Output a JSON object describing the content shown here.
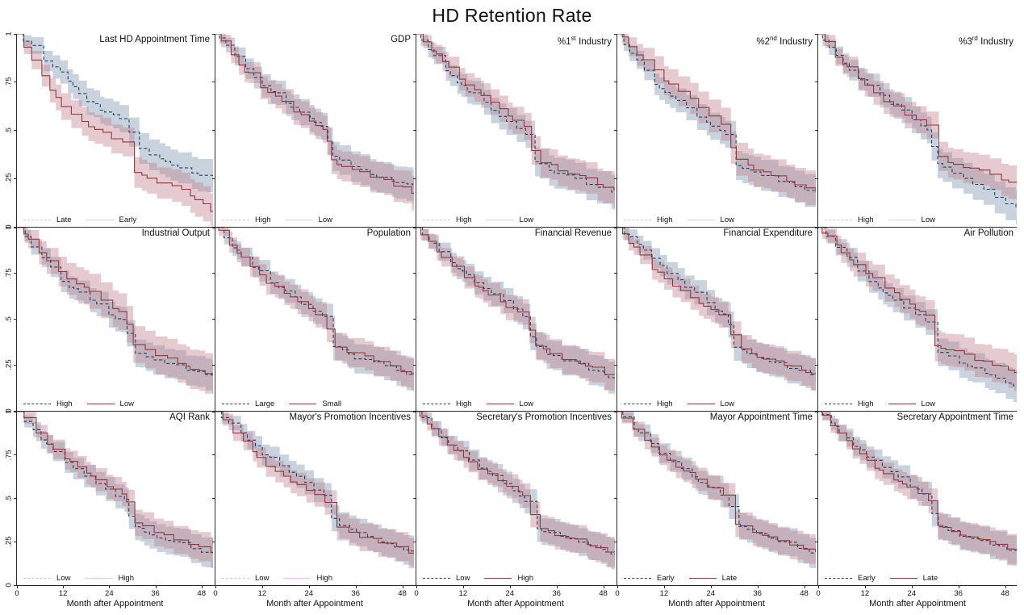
{
  "chart_data": {
    "type": "line",
    "subtype": "kaplan-meier-survival-grid",
    "title": "HD Retention Rate",
    "x_label": "Month after Appointment",
    "x_ticks": [
      0,
      12,
      24,
      36,
      48
    ],
    "y_ticks": [
      "0",
      ".25",
      ".5",
      ".75",
      "1"
    ],
    "x_range": [
      0,
      51
    ],
    "y_range": [
      0,
      1
    ],
    "grid": "off",
    "legend_position": "bottom-left-inside",
    "months_key": [
      0,
      3,
      6,
      9,
      12,
      18,
      24,
      28,
      30,
      36,
      42,
      48,
      51
    ],
    "colors": {
      "blue_line": "#24425f",
      "blue_band": "#7b97b1",
      "red_line": "#8e3a3f",
      "red_band": "#c2848c",
      "legend_light_blue": "#b9cbdb",
      "legend_light_red": "#e6cbd0",
      "axis": "#2b2b2b"
    },
    "panels": [
      {
        "title": "Last HD Appointment Time",
        "legend": [
          "Late",
          "Early"
        ],
        "legend_shade": "light",
        "blue": [
          1,
          0.95,
          0.88,
          0.83,
          0.78,
          0.66,
          0.58,
          0.56,
          0.44,
          0.35,
          0.31,
          0.27,
          0.25
        ],
        "red": [
          1,
          0.9,
          0.8,
          0.7,
          0.62,
          0.52,
          0.47,
          0.44,
          0.28,
          0.24,
          0.2,
          0.12,
          0.07
        ],
        "ciB": [
          0.02,
          0.04,
          0.05,
          0.06,
          0.06,
          0.07,
          0.07,
          0.07,
          0.08,
          0.08,
          0.08,
          0.085,
          0.09
        ],
        "ciR": [
          0.02,
          0.045,
          0.055,
          0.065,
          0.07,
          0.075,
          0.075,
          0.075,
          0.08,
          0.08,
          0.085,
          0.09,
          0.095
        ]
      },
      {
        "title": "GDP",
        "legend": [
          "High",
          "Low"
        ],
        "legend_shade": "light",
        "blue": [
          1,
          0.93,
          0.86,
          0.8,
          0.74,
          0.65,
          0.56,
          0.51,
          0.36,
          0.3,
          0.26,
          0.22,
          0.2
        ],
        "red": [
          1,
          0.91,
          0.84,
          0.78,
          0.72,
          0.63,
          0.55,
          0.5,
          0.34,
          0.29,
          0.25,
          0.2,
          0.18
        ],
        "ciB": [
          0.025,
          0.04,
          0.05,
          0.055,
          0.06,
          0.065,
          0.07,
          0.07,
          0.075,
          0.08,
          0.08,
          0.085,
          0.09
        ],
        "ciR": [
          0.025,
          0.04,
          0.05,
          0.055,
          0.06,
          0.065,
          0.07,
          0.07,
          0.075,
          0.08,
          0.08,
          0.085,
          0.09
        ]
      },
      {
        "title": "%1st Industry",
        "title_sup": "st",
        "title_pre": "%1",
        "title_post": " Industry",
        "legend": [
          "High",
          "Low"
        ],
        "legend_shade": "light",
        "blue": [
          1,
          0.92,
          0.85,
          0.78,
          0.72,
          0.63,
          0.54,
          0.49,
          0.34,
          0.28,
          0.24,
          0.2,
          0.18
        ],
        "red": [
          1,
          0.94,
          0.87,
          0.81,
          0.75,
          0.66,
          0.57,
          0.52,
          0.36,
          0.3,
          0.26,
          0.21,
          0.19
        ],
        "ciB": [
          0.025,
          0.04,
          0.05,
          0.055,
          0.06,
          0.065,
          0.07,
          0.07,
          0.075,
          0.08,
          0.08,
          0.085,
          0.09
        ],
        "ciR": [
          0.025,
          0.04,
          0.05,
          0.055,
          0.06,
          0.065,
          0.07,
          0.07,
          0.075,
          0.08,
          0.08,
          0.085,
          0.09
        ]
      },
      {
        "title": "%2nd Industry",
        "title_sup": "nd",
        "title_pre": "%2",
        "title_post": " Industry",
        "legend": [
          "High",
          "Low"
        ],
        "legend_shade": "light",
        "blue": [
          1,
          0.91,
          0.83,
          0.76,
          0.7,
          0.61,
          0.53,
          0.48,
          0.33,
          0.28,
          0.24,
          0.19,
          0.17
        ],
        "red": [
          1,
          0.94,
          0.88,
          0.82,
          0.76,
          0.67,
          0.57,
          0.51,
          0.35,
          0.29,
          0.25,
          0.2,
          0.18
        ],
        "ciB": [
          0.025,
          0.04,
          0.05,
          0.055,
          0.06,
          0.065,
          0.07,
          0.07,
          0.075,
          0.08,
          0.08,
          0.085,
          0.09
        ],
        "ciR": [
          0.025,
          0.05,
          0.06,
          0.07,
          0.075,
          0.08,
          0.085,
          0.085,
          0.085,
          0.085,
          0.085,
          0.09,
          0.09
        ]
      },
      {
        "title": "%3rd Industry",
        "title_sup": "rd",
        "title_pre": "%3",
        "title_post": " Industry",
        "legend": [
          "High",
          "Low"
        ],
        "legend_shade": "light",
        "blue": [
          1,
          0.93,
          0.86,
          0.8,
          0.74,
          0.65,
          0.56,
          0.51,
          0.34,
          0.26,
          0.2,
          0.13,
          0.1
        ],
        "red": [
          1,
          0.92,
          0.85,
          0.79,
          0.73,
          0.64,
          0.56,
          0.52,
          0.37,
          0.32,
          0.28,
          0.24,
          0.22
        ],
        "ciB": [
          0.025,
          0.04,
          0.05,
          0.055,
          0.06,
          0.065,
          0.07,
          0.07,
          0.075,
          0.08,
          0.08,
          0.085,
          0.09
        ],
        "ciR": [
          0.025,
          0.04,
          0.05,
          0.055,
          0.06,
          0.065,
          0.07,
          0.07,
          0.075,
          0.08,
          0.08,
          0.085,
          0.09
        ]
      },
      {
        "title": "Industrial Output",
        "legend": [
          "High",
          "Low"
        ],
        "legend_shade": "dark",
        "blue": [
          1,
          0.92,
          0.84,
          0.77,
          0.7,
          0.61,
          0.53,
          0.48,
          0.33,
          0.28,
          0.24,
          0.2,
          0.18
        ],
        "red": [
          1,
          0.93,
          0.86,
          0.8,
          0.74,
          0.66,
          0.57,
          0.52,
          0.36,
          0.3,
          0.26,
          0.21,
          0.19
        ],
        "ciB": [
          0.025,
          0.04,
          0.05,
          0.055,
          0.06,
          0.065,
          0.07,
          0.07,
          0.075,
          0.08,
          0.08,
          0.085,
          0.09
        ],
        "ciR": [
          0.025,
          0.05,
          0.065,
          0.075,
          0.085,
          0.095,
          0.1,
          0.1,
          0.1,
          0.105,
          0.105,
          0.11,
          0.11
        ]
      },
      {
        "title": "Population",
        "legend": [
          "Large",
          "Small"
        ],
        "legend_shade": "dark",
        "blue": [
          1,
          0.93,
          0.86,
          0.8,
          0.74,
          0.65,
          0.56,
          0.51,
          0.35,
          0.29,
          0.25,
          0.21,
          0.19
        ],
        "red": [
          1,
          0.92,
          0.85,
          0.78,
          0.72,
          0.63,
          0.55,
          0.5,
          0.36,
          0.31,
          0.27,
          0.22,
          0.2
        ],
        "ciB": [
          0.025,
          0.04,
          0.05,
          0.055,
          0.06,
          0.065,
          0.07,
          0.07,
          0.075,
          0.08,
          0.08,
          0.085,
          0.09
        ],
        "ciR": [
          0.025,
          0.04,
          0.05,
          0.055,
          0.06,
          0.065,
          0.07,
          0.07,
          0.075,
          0.08,
          0.08,
          0.085,
          0.09
        ]
      },
      {
        "title": "Financial Revenue",
        "legend": [
          "High",
          "Low"
        ],
        "legend_shade": "dark",
        "blue": [
          1,
          0.94,
          0.87,
          0.81,
          0.75,
          0.66,
          0.57,
          0.51,
          0.35,
          0.29,
          0.25,
          0.2,
          0.18
        ],
        "red": [
          1,
          0.92,
          0.85,
          0.79,
          0.73,
          0.64,
          0.56,
          0.51,
          0.36,
          0.3,
          0.26,
          0.21,
          0.19
        ],
        "ciB": [
          0.025,
          0.04,
          0.05,
          0.055,
          0.06,
          0.065,
          0.07,
          0.07,
          0.075,
          0.08,
          0.08,
          0.085,
          0.09
        ],
        "ciR": [
          0.025,
          0.04,
          0.05,
          0.055,
          0.06,
          0.065,
          0.07,
          0.07,
          0.075,
          0.08,
          0.08,
          0.085,
          0.09
        ]
      },
      {
        "title": "Financial Expenditure",
        "legend": [
          "High",
          "Low"
        ],
        "legend_shade": "dark",
        "blue": [
          1,
          0.95,
          0.89,
          0.83,
          0.77,
          0.67,
          0.57,
          0.51,
          0.35,
          0.29,
          0.25,
          0.2,
          0.18
        ],
        "red": [
          1,
          0.92,
          0.85,
          0.78,
          0.72,
          0.63,
          0.55,
          0.5,
          0.35,
          0.3,
          0.26,
          0.21,
          0.19
        ],
        "ciB": [
          0.025,
          0.04,
          0.05,
          0.055,
          0.06,
          0.065,
          0.07,
          0.07,
          0.075,
          0.08,
          0.08,
          0.085,
          0.09
        ],
        "ciR": [
          0.025,
          0.04,
          0.05,
          0.055,
          0.06,
          0.065,
          0.07,
          0.07,
          0.075,
          0.08,
          0.08,
          0.085,
          0.09
        ]
      },
      {
        "title": "Air Pollution",
        "legend": [
          "High",
          "Low"
        ],
        "legend_shade": "dark",
        "blue": [
          1,
          0.93,
          0.86,
          0.79,
          0.72,
          0.62,
          0.53,
          0.48,
          0.33,
          0.27,
          0.22,
          0.16,
          0.13
        ],
        "red": [
          1,
          0.94,
          0.87,
          0.81,
          0.75,
          0.66,
          0.57,
          0.52,
          0.36,
          0.31,
          0.27,
          0.23,
          0.21
        ],
        "ciB": [
          0.025,
          0.04,
          0.05,
          0.055,
          0.06,
          0.065,
          0.07,
          0.07,
          0.075,
          0.08,
          0.08,
          0.085,
          0.09
        ],
        "ciR": [
          0.025,
          0.045,
          0.055,
          0.065,
          0.07,
          0.075,
          0.08,
          0.08,
          0.085,
          0.09,
          0.09,
          0.095,
          0.1
        ]
      },
      {
        "title": "AQI Rank",
        "legend": [
          "Low",
          "High"
        ],
        "legend_shade": "light",
        "blue": [
          1,
          0.92,
          0.85,
          0.78,
          0.71,
          0.62,
          0.54,
          0.49,
          0.34,
          0.28,
          0.24,
          0.19,
          0.17
        ],
        "red": [
          1,
          0.93,
          0.86,
          0.8,
          0.74,
          0.65,
          0.56,
          0.51,
          0.36,
          0.3,
          0.26,
          0.21,
          0.19
        ],
        "ciB": [
          0.025,
          0.04,
          0.05,
          0.055,
          0.06,
          0.065,
          0.07,
          0.07,
          0.075,
          0.08,
          0.08,
          0.085,
          0.09
        ],
        "ciR": [
          0.025,
          0.04,
          0.05,
          0.055,
          0.06,
          0.065,
          0.07,
          0.07,
          0.075,
          0.08,
          0.08,
          0.085,
          0.09
        ]
      },
      {
        "title": "Mayor's Promotion Incentives",
        "legend": [
          "Low",
          "High"
        ],
        "legend_shade": "light",
        "blue": [
          1,
          0.94,
          0.88,
          0.82,
          0.76,
          0.67,
          0.57,
          0.52,
          0.36,
          0.3,
          0.26,
          0.21,
          0.19
        ],
        "red": [
          1,
          0.92,
          0.85,
          0.78,
          0.71,
          0.62,
          0.54,
          0.49,
          0.34,
          0.29,
          0.25,
          0.2,
          0.18
        ],
        "ciB": [
          0.025,
          0.04,
          0.05,
          0.055,
          0.06,
          0.065,
          0.07,
          0.07,
          0.075,
          0.08,
          0.08,
          0.085,
          0.09
        ],
        "ciR": [
          0.025,
          0.04,
          0.05,
          0.055,
          0.06,
          0.065,
          0.07,
          0.07,
          0.075,
          0.08,
          0.08,
          0.085,
          0.09
        ]
      },
      {
        "title": "Secretary's Promotion Incentives",
        "legend": [
          "Low",
          "High"
        ],
        "legend_shade": "dark",
        "blue": [
          1,
          0.93,
          0.86,
          0.8,
          0.74,
          0.65,
          0.55,
          0.49,
          0.33,
          0.28,
          0.24,
          0.2,
          0.18
        ],
        "red": [
          1,
          0.92,
          0.85,
          0.79,
          0.73,
          0.64,
          0.56,
          0.51,
          0.35,
          0.29,
          0.25,
          0.2,
          0.17
        ],
        "ciB": [
          0.025,
          0.04,
          0.05,
          0.055,
          0.06,
          0.065,
          0.07,
          0.07,
          0.075,
          0.08,
          0.08,
          0.085,
          0.09
        ],
        "ciR": [
          0.025,
          0.04,
          0.05,
          0.055,
          0.06,
          0.065,
          0.07,
          0.07,
          0.075,
          0.08,
          0.08,
          0.085,
          0.09
        ]
      },
      {
        "title": "Mayor Appointment Time",
        "legend": [
          "Early",
          "Late"
        ],
        "legend_shade": "dark",
        "blue": [
          1,
          0.93,
          0.86,
          0.8,
          0.73,
          0.64,
          0.55,
          0.5,
          0.35,
          0.29,
          0.25,
          0.2,
          0.18
        ],
        "red": [
          1,
          0.92,
          0.85,
          0.79,
          0.73,
          0.65,
          0.56,
          0.51,
          0.36,
          0.3,
          0.25,
          0.21,
          0.19
        ],
        "ciB": [
          0.025,
          0.04,
          0.05,
          0.055,
          0.06,
          0.065,
          0.07,
          0.07,
          0.075,
          0.08,
          0.08,
          0.085,
          0.09
        ],
        "ciR": [
          0.025,
          0.04,
          0.05,
          0.055,
          0.06,
          0.065,
          0.07,
          0.07,
          0.075,
          0.08,
          0.08,
          0.085,
          0.09
        ]
      },
      {
        "title": "Secretary Appointment Time",
        "legend": [
          "Early",
          "Late"
        ],
        "legend_shade": "dark",
        "blue": [
          1,
          0.94,
          0.87,
          0.81,
          0.75,
          0.66,
          0.56,
          0.51,
          0.35,
          0.29,
          0.25,
          0.21,
          0.19
        ],
        "red": [
          1,
          0.92,
          0.85,
          0.79,
          0.72,
          0.63,
          0.55,
          0.5,
          0.36,
          0.3,
          0.26,
          0.22,
          0.2
        ],
        "ciB": [
          0.025,
          0.04,
          0.05,
          0.055,
          0.06,
          0.065,
          0.07,
          0.07,
          0.075,
          0.08,
          0.08,
          0.085,
          0.09
        ],
        "ciR": [
          0.025,
          0.04,
          0.05,
          0.055,
          0.06,
          0.065,
          0.07,
          0.07,
          0.075,
          0.08,
          0.08,
          0.085,
          0.09
        ]
      }
    ]
  }
}
